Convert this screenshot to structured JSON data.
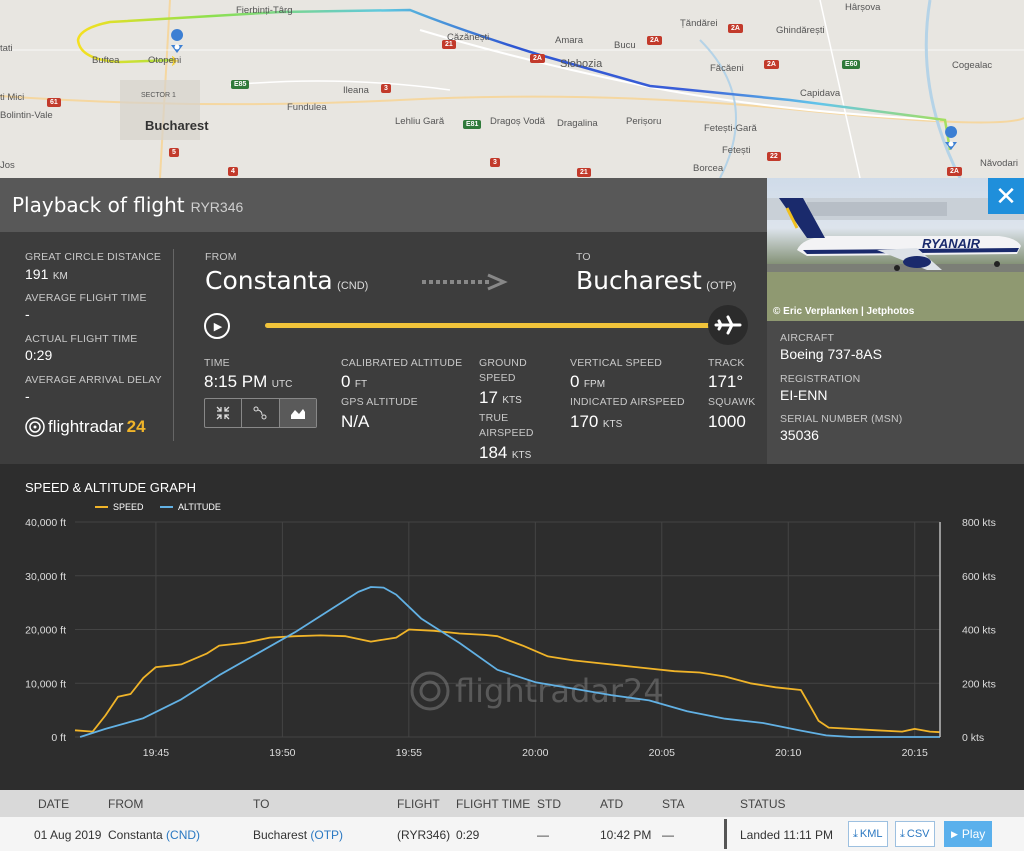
{
  "map": {
    "labels": {
      "fierbinti": "Fierbinți-Târg",
      "cazanesti": "Căzănești",
      "amara": "Amara",
      "bucu": "Bucu",
      "tandarei": "Țăndărei",
      "harsova": "Hârșova",
      "ghindaresti": "Ghindărești",
      "buftea": "Buftea",
      "otopeni": "Otopeni",
      "tati": "tati",
      "slobozia": "Slobozia",
      "facaeni": "Făcăeni",
      "cogealac": "Cogealac",
      "mici": "ti Mici",
      "sector1": "SECTOR 1",
      "ileana": "Ileana",
      "fundulea": "Fundulea",
      "capidava": "Capidava",
      "bolintin": "Bolintin-Vale",
      "bucharest": "Bucharest",
      "lehliu": "Lehliu Gară",
      "dragos": "Dragoș Vodă",
      "dragalina": "Dragalina",
      "perisoru": "Perișoru",
      "fetesti_gara": "Fetești-Gară",
      "fetesti": "Fetești",
      "borcea": "Borcea",
      "navodari": "Năvodari",
      "jos": "Jos"
    },
    "shields": {
      "e85": "E85",
      "e81": "E81",
      "e60": "E60",
      "a2a": "2A",
      "a2b": "2A",
      "a2c": "2A",
      "a2d": "2A",
      "r3": "3",
      "r3b": "3",
      "r4": "4",
      "r5": "5",
      "r21": "21",
      "r21b": "21",
      "r22": "22",
      "r2a": "2A",
      "r61": "61"
    }
  },
  "header": {
    "title": "Playback of flight",
    "flight": "RYR346"
  },
  "stats": {
    "gc_distance_label": "GREAT CIRCLE DISTANCE",
    "gc_distance_value": "191",
    "gc_distance_unit": "KM",
    "avg_time_label": "AVERAGE FLIGHT TIME",
    "avg_time_value": "-",
    "actual_time_label": "ACTUAL FLIGHT TIME",
    "actual_time_value": "0:29",
    "avg_delay_label": "AVERAGE ARRIVAL DELAY",
    "avg_delay_value": "-",
    "logo_text": "flightradar",
    "logo_num": "24"
  },
  "route": {
    "from_label": "FROM",
    "from_city": "Constanta",
    "from_code": "(CND)",
    "to_label": "TO",
    "to_city": "Bucharest",
    "to_code": "(OTP)",
    "progress": 1.0
  },
  "telemetry": {
    "time_label": "TIME",
    "time_value": "8:15 PM",
    "time_unit": "UTC",
    "cal_alt_label": "CALIBRATED ALTITUDE",
    "cal_alt_value": "0",
    "cal_alt_unit": "FT",
    "gps_alt_label": "GPS ALTITUDE",
    "gps_alt_value": "N/A",
    "ground_speed_label_1": "GROUND",
    "ground_speed_label_2": "SPEED",
    "ground_speed_value": "17",
    "ground_speed_unit": "KTS",
    "true_as_label_1": "TRUE",
    "true_as_label_2": "AIRSPEED",
    "true_as_value": "184",
    "true_as_unit": "KTS",
    "vspeed_label": "VERTICAL SPEED",
    "vspeed_value": "0",
    "vspeed_unit": "FPM",
    "ias_label": "INDICATED AIRSPEED",
    "ias_value": "170",
    "ias_unit": "KTS",
    "track_label": "TRACK",
    "track_value": "171°",
    "squawk_label": "SQUAWK",
    "squawk_value": "1000"
  },
  "aircraft": {
    "photo_credit": "© Eric Verplanken | Jetphotos",
    "livery_text": "RYANAIR",
    "aircraft_label": "AIRCRAFT",
    "aircraft_value": "Boeing 737-8AS",
    "registration_label": "REGISTRATION",
    "registration_value": "EI-ENN",
    "serial_label": "SERIAL NUMBER (MSN)",
    "serial_value": "35036",
    "close_glyph": "✕"
  },
  "graph": {
    "title": "SPEED & ALTITUDE GRAPH",
    "watermark": "flightradar24",
    "colors": {
      "speed": "#f0b429",
      "altitude": "#62b1e4"
    }
  },
  "chart_data": {
    "type": "line",
    "title": "SPEED & ALTITUDE GRAPH",
    "x_unit": "time",
    "x_ticks": [
      "19:45",
      "19:50",
      "19:55",
      "20:00",
      "20:05",
      "20:10",
      "20:15"
    ],
    "y_left": {
      "ticks": [
        "40,000 ft",
        "30,000 ft",
        "20,000 ft",
        "10,000 ft",
        "0 ft"
      ],
      "range": [
        0,
        40000
      ]
    },
    "y_right": {
      "ticks": [
        "800 kts",
        "600 kts",
        "400 kts",
        "200 kts",
        "0 kts"
      ],
      "range": [
        0,
        800
      ]
    },
    "x_range_min": [
      41.8,
      76.0
    ],
    "series": [
      {
        "name": "SPEED",
        "axis": "right",
        "x": [
          41.8,
          42.5,
          43.0,
          43.5,
          44.0,
          44.5,
          45.0,
          45.5,
          46.0,
          47.0,
          47.5,
          48.5,
          49.5,
          50.5,
          51.5,
          52.5,
          53.5,
          54.5,
          55.0,
          56.0,
          57.0,
          58.0,
          58.5,
          59.5,
          60.5,
          61.5,
          62.5,
          63.5,
          64.5,
          65.5,
          66.5,
          67.5,
          68.5,
          69.5,
          70.5,
          70.9,
          71.2,
          71.6,
          72.5,
          73.5,
          74.5,
          75.0,
          75.6,
          76.0
        ],
        "values": [
          25,
          20,
          80,
          150,
          160,
          220,
          260,
          265,
          270,
          310,
          340,
          350,
          370,
          375,
          378,
          375,
          355,
          370,
          400,
          395,
          385,
          380,
          375,
          340,
          300,
          285,
          275,
          265,
          255,
          245,
          240,
          225,
          200,
          185,
          175,
          110,
          60,
          35,
          30,
          25,
          20,
          30,
          20,
          18
        ]
      },
      {
        "name": "ALTITUDE",
        "axis": "left",
        "x": [
          42.0,
          43.0,
          44.5,
          46.0,
          47.5,
          49.0,
          50.5,
          52.0,
          53.0,
          53.5,
          54.0,
          54.5,
          55.5,
          57.0,
          58.5,
          60.0,
          61.5,
          63.0,
          64.5,
          66.0,
          67.5,
          69.0,
          70.5,
          71.5,
          72.5,
          76.0
        ],
        "values": [
          0,
          1500,
          3500,
          7000,
          11500,
          15500,
          19500,
          24000,
          27000,
          27900,
          27800,
          26500,
          22000,
          17500,
          12500,
          10200,
          9000,
          7800,
          6800,
          4800,
          3400,
          2600,
          1200,
          300,
          0,
          0
        ]
      }
    ],
    "legend": [
      "SPEED",
      "ALTITUDE"
    ]
  },
  "table": {
    "headers": {
      "date": "DATE",
      "from": "FROM",
      "to": "TO",
      "flight": "FLIGHT",
      "flight_time": "FLIGHT TIME",
      "std": "STD",
      "atd": "ATD",
      "sta": "STA",
      "status": "STATUS"
    },
    "row": {
      "date": "01 Aug 2019",
      "from_city": "Constanta",
      "from_code": "(CND)",
      "to_city": "Bucharest",
      "to_code": "(OTP)",
      "flight": "(RYR346)",
      "flight_time": "0:29",
      "std": "—",
      "atd": "10:42 PM",
      "sta": "—",
      "status": "Landed 11:11 PM",
      "kml_label": "KML",
      "csv_label": "CSV",
      "play_label": "Play"
    }
  }
}
